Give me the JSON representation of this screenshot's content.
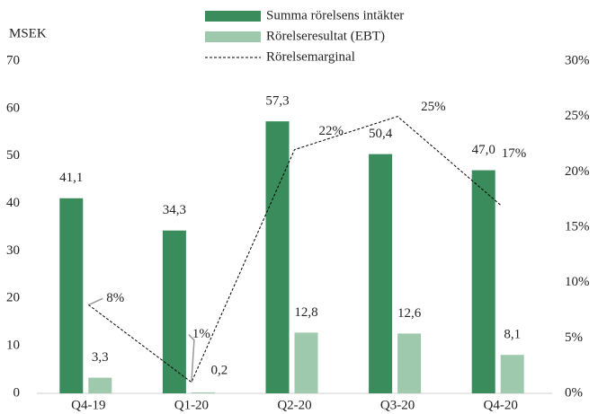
{
  "chart_data": {
    "type": "bar",
    "y_label": "MSEK",
    "categories": [
      "Q4-19",
      "Q1-20",
      "Q2-20",
      "Q3-20",
      "Q4-20"
    ],
    "series": [
      {
        "name": "Summa rörelsens intäkter",
        "color": "#3a8c5c",
        "values": [
          41.1,
          34.3,
          57.3,
          50.4,
          47.0
        ],
        "value_labels": [
          "41,1",
          "34,3",
          "57,3",
          "50,4",
          "47,0"
        ]
      },
      {
        "name": "Rörelseresultat (EBT)",
        "color": "#9fc9ad",
        "values": [
          3.3,
          0.2,
          12.8,
          12.6,
          8.1
        ],
        "value_labels": [
          "3,3",
          "0,2",
          "12,8",
          "12,6",
          "8,1"
        ]
      },
      {
        "name": "Rörelsemarginal",
        "type": "line",
        "axis": "y2",
        "color": "#000000",
        "values": [
          8,
          1,
          22,
          25,
          17
        ],
        "value_labels": [
          "8%",
          "1%",
          "22%",
          "25%",
          "17%"
        ]
      }
    ],
    "ylim": [
      0,
      70
    ],
    "yticks": [
      0,
      10,
      20,
      30,
      40,
      50,
      60,
      70
    ],
    "y2lim": [
      0,
      30
    ],
    "y2ticks": [
      {
        "value": 0,
        "label": "0%"
      },
      {
        "value": 5,
        "label": "5%"
      },
      {
        "value": 10,
        "label": "10%"
      },
      {
        "value": 15,
        "label": "15%"
      },
      {
        "value": 20,
        "label": "20%"
      },
      {
        "value": 25,
        "label": "25%"
      },
      {
        "value": 30,
        "label": "30%"
      }
    ],
    "grid": false
  }
}
